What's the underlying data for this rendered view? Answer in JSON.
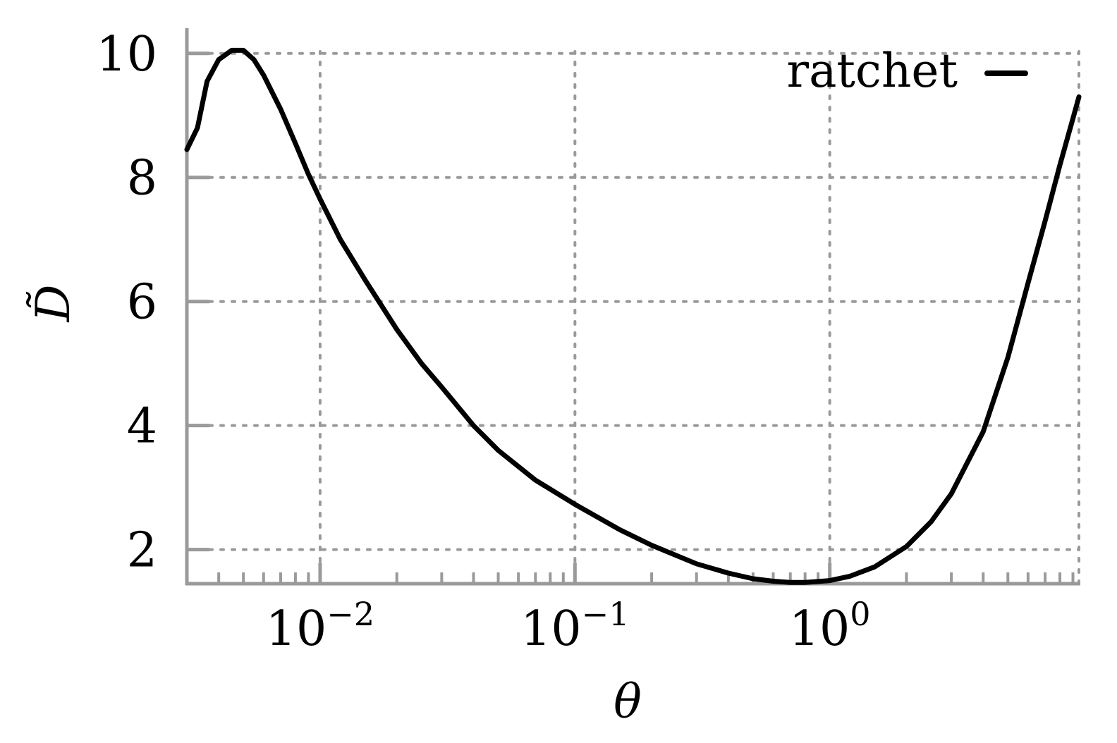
{
  "chart_data": {
    "type": "line",
    "xlabel": "θ",
    "ylabel": "D̃",
    "x_scale": "log",
    "xlim": [
      0.003,
      9.5
    ],
    "ylim": [
      1.45,
      10.35
    ],
    "grid": true,
    "legend": {
      "position": "top-right",
      "entries": [
        "ratchet"
      ]
    },
    "x_ticks": [
      {
        "value": 0.01,
        "base": "10",
        "exp": "−2"
      },
      {
        "value": 0.1,
        "base": "10",
        "exp": "−1"
      },
      {
        "value": 1,
        "base": "10",
        "exp": "0"
      }
    ],
    "y_ticks": [
      2,
      4,
      6,
      8,
      10
    ],
    "series": [
      {
        "name": "ratchet",
        "color": "#000000",
        "x": [
          0.003,
          0.0033,
          0.0036,
          0.004,
          0.0045,
          0.005,
          0.0055,
          0.006,
          0.007,
          0.008,
          0.009,
          0.01,
          0.012,
          0.015,
          0.02,
          0.025,
          0.03,
          0.04,
          0.05,
          0.07,
          0.1,
          0.15,
          0.2,
          0.3,
          0.4,
          0.5,
          0.6,
          0.7,
          0.8,
          1.0,
          1.2,
          1.5,
          2.0,
          2.5,
          3.0,
          4.0,
          5.0,
          6.0,
          7.0,
          8.0,
          9.0,
          9.5
        ],
        "y": [
          8.45,
          8.8,
          9.55,
          9.9,
          10.05,
          10.05,
          9.9,
          9.65,
          9.1,
          8.55,
          8.05,
          7.65,
          7.0,
          6.35,
          5.55,
          5.0,
          4.62,
          4.0,
          3.6,
          3.12,
          2.73,
          2.32,
          2.07,
          1.77,
          1.62,
          1.53,
          1.49,
          1.47,
          1.47,
          1.5,
          1.57,
          1.72,
          2.05,
          2.45,
          2.9,
          3.9,
          5.1,
          6.3,
          7.3,
          8.2,
          8.95,
          9.3
        ]
      }
    ]
  }
}
